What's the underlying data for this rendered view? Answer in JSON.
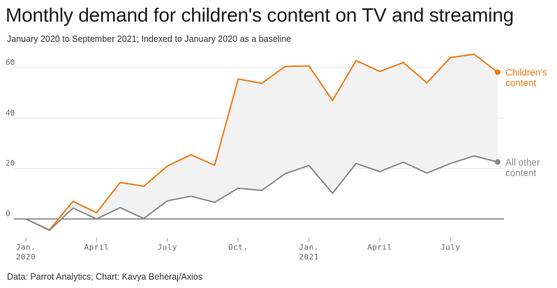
{
  "title": "Monthly demand for children's content on TV and streaming",
  "subtitle": "January 2020 to September 2021;  Indexed to January 2020 as a baseline",
  "source": "Data: Parrot Analytics; Chart: Kavya Beheraj/Axios",
  "chart_data": {
    "type": "line",
    "x": [
      "2020-01",
      "2020-02",
      "2020-03",
      "2020-04",
      "2020-05",
      "2020-06",
      "2020-07",
      "2020-08",
      "2020-09",
      "2020-10",
      "2020-11",
      "2020-12",
      "2021-01",
      "2021-02",
      "2021-03",
      "2021-04",
      "2021-05",
      "2021-06",
      "2021-07",
      "2021-08",
      "2021-09"
    ],
    "x_tick_labels": [
      {
        "x": "2020-01",
        "line1": "Jan.",
        "line2": "2020"
      },
      {
        "x": "2020-04",
        "line1": "April",
        "line2": ""
      },
      {
        "x": "2020-07",
        "line1": "July",
        "line2": ""
      },
      {
        "x": "2020-10",
        "line1": "Oct.",
        "line2": ""
      },
      {
        "x": "2021-01",
        "line1": "Jan.",
        "line2": "2021"
      },
      {
        "x": "2021-04",
        "line1": "April",
        "line2": ""
      },
      {
        "x": "2021-07",
        "line1": "July",
        "line2": ""
      }
    ],
    "y_ticks": [
      0,
      20,
      40,
      60
    ],
    "ylim": [
      -5,
      66
    ],
    "grid": true,
    "area_between_series": true,
    "area_color": "#f2f2f2",
    "series": [
      {
        "name": "Children's content",
        "label_lines": [
          "Children's",
          "content"
        ],
        "color": "#f07a12",
        "values": [
          0,
          -4.3,
          7,
          2.5,
          14.5,
          13,
          21,
          25.5,
          21.3,
          55.5,
          53.8,
          60.5,
          60.7,
          47,
          62.8,
          58.5,
          62,
          54,
          64,
          65.3,
          58.2
        ]
      },
      {
        "name": "All other content",
        "label_lines": [
          "All other",
          "content"
        ],
        "color": "#888888",
        "values": [
          0,
          -4.5,
          4.3,
          0,
          4.5,
          0.2,
          7.2,
          9,
          6.6,
          12.2,
          11.3,
          18,
          21.2,
          10.2,
          22,
          18.8,
          22.5,
          18.2,
          22,
          25,
          22.6
        ]
      }
    ]
  }
}
